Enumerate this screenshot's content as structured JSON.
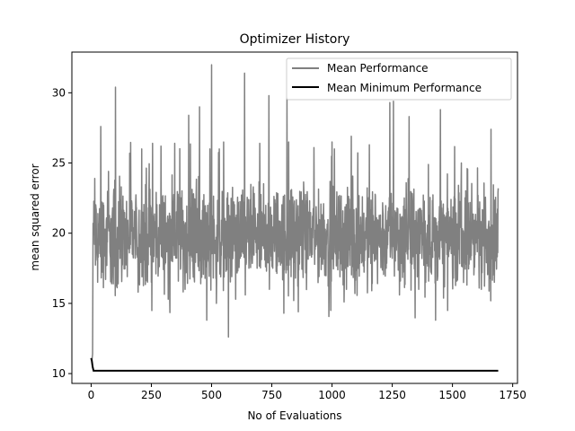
{
  "chart_data": {
    "type": "line",
    "title": "Optimizer History",
    "xlabel": "No of Evaluations",
    "ylabel": "mean squared error",
    "xlim": [
      -80,
      1770
    ],
    "ylim": [
      9.3,
      32.9
    ],
    "xticks": [
      0,
      250,
      500,
      750,
      1000,
      1250,
      1500,
      1750
    ],
    "yticks": [
      10,
      15,
      20,
      25,
      30
    ],
    "legend_position": "top-right",
    "grid": false,
    "series": [
      {
        "name": "Mean Performance",
        "color": "#808080",
        "x_range": [
          0,
          1690
        ],
        "mean_level": 19.8,
        "initial_values": [
          [
            0,
            11.1
          ],
          [
            3,
            10.9
          ],
          [
            6,
            11.4
          ],
          [
            8,
            20.7
          ]
        ],
        "spikes": [
          [
            15,
            23.9
          ],
          [
            27,
            16.5
          ],
          [
            40,
            27.6
          ],
          [
            60,
            16.7
          ],
          [
            72,
            24.4
          ],
          [
            85,
            16.4
          ],
          [
            101,
            30.4
          ],
          [
            112,
            16.4
          ],
          [
            125,
            23.3
          ],
          [
            150,
            16.9
          ],
          [
            160,
            25.7
          ],
          [
            195,
            15.8
          ],
          [
            210,
            26.0
          ],
          [
            250,
            16.5
          ],
          [
            255,
            26.4
          ],
          [
            290,
            26.2
          ],
          [
            320,
            15.3
          ],
          [
            347,
            26.4
          ],
          [
            390,
            16.0
          ],
          [
            405,
            28.4
          ],
          [
            450,
            29.0
          ],
          [
            455,
            16.4
          ],
          [
            480,
            13.8
          ],
          [
            493,
            26.0
          ],
          [
            500,
            32.0
          ],
          [
            520,
            15.0
          ],
          [
            532,
            26.0
          ],
          [
            550,
            26.5
          ],
          [
            570,
            12.6
          ],
          [
            600,
            15.3
          ],
          [
            637,
            31.4
          ],
          [
            640,
            15.6
          ],
          [
            700,
            26.4
          ],
          [
            738,
            29.8
          ],
          [
            740,
            16.0
          ],
          [
            800,
            14.3
          ],
          [
            813,
            29.6
          ],
          [
            820,
            26.5
          ],
          [
            860,
            14.4
          ],
          [
            925,
            26.1
          ],
          [
            995,
            14.5
          ],
          [
            1000,
            26.5
          ],
          [
            1010,
            26.0
          ],
          [
            1050,
            15.1
          ],
          [
            1060,
            16.0
          ],
          [
            1080,
            26.9
          ],
          [
            1155,
            26.3
          ],
          [
            1165,
            15.9
          ],
          [
            1240,
            29.3
          ],
          [
            1255,
            29.4
          ],
          [
            1280,
            15.6
          ],
          [
            1320,
            28.3
          ],
          [
            1360,
            16.0
          ],
          [
            1400,
            24.9
          ],
          [
            1430,
            13.8
          ],
          [
            1450,
            28.8
          ],
          [
            1480,
            14.5
          ],
          [
            1537,
            25.0
          ],
          [
            1560,
            16.3
          ],
          [
            1620,
            16.0
          ],
          [
            1660,
            27.4
          ],
          [
            1690,
            23.2
          ]
        ]
      },
      {
        "name": "Mean Minimum Performance",
        "color": "#000000",
        "x": [
          0,
          3,
          6,
          10,
          1690
        ],
        "y": [
          11.1,
          10.9,
          10.5,
          10.2,
          10.2
        ]
      }
    ]
  }
}
